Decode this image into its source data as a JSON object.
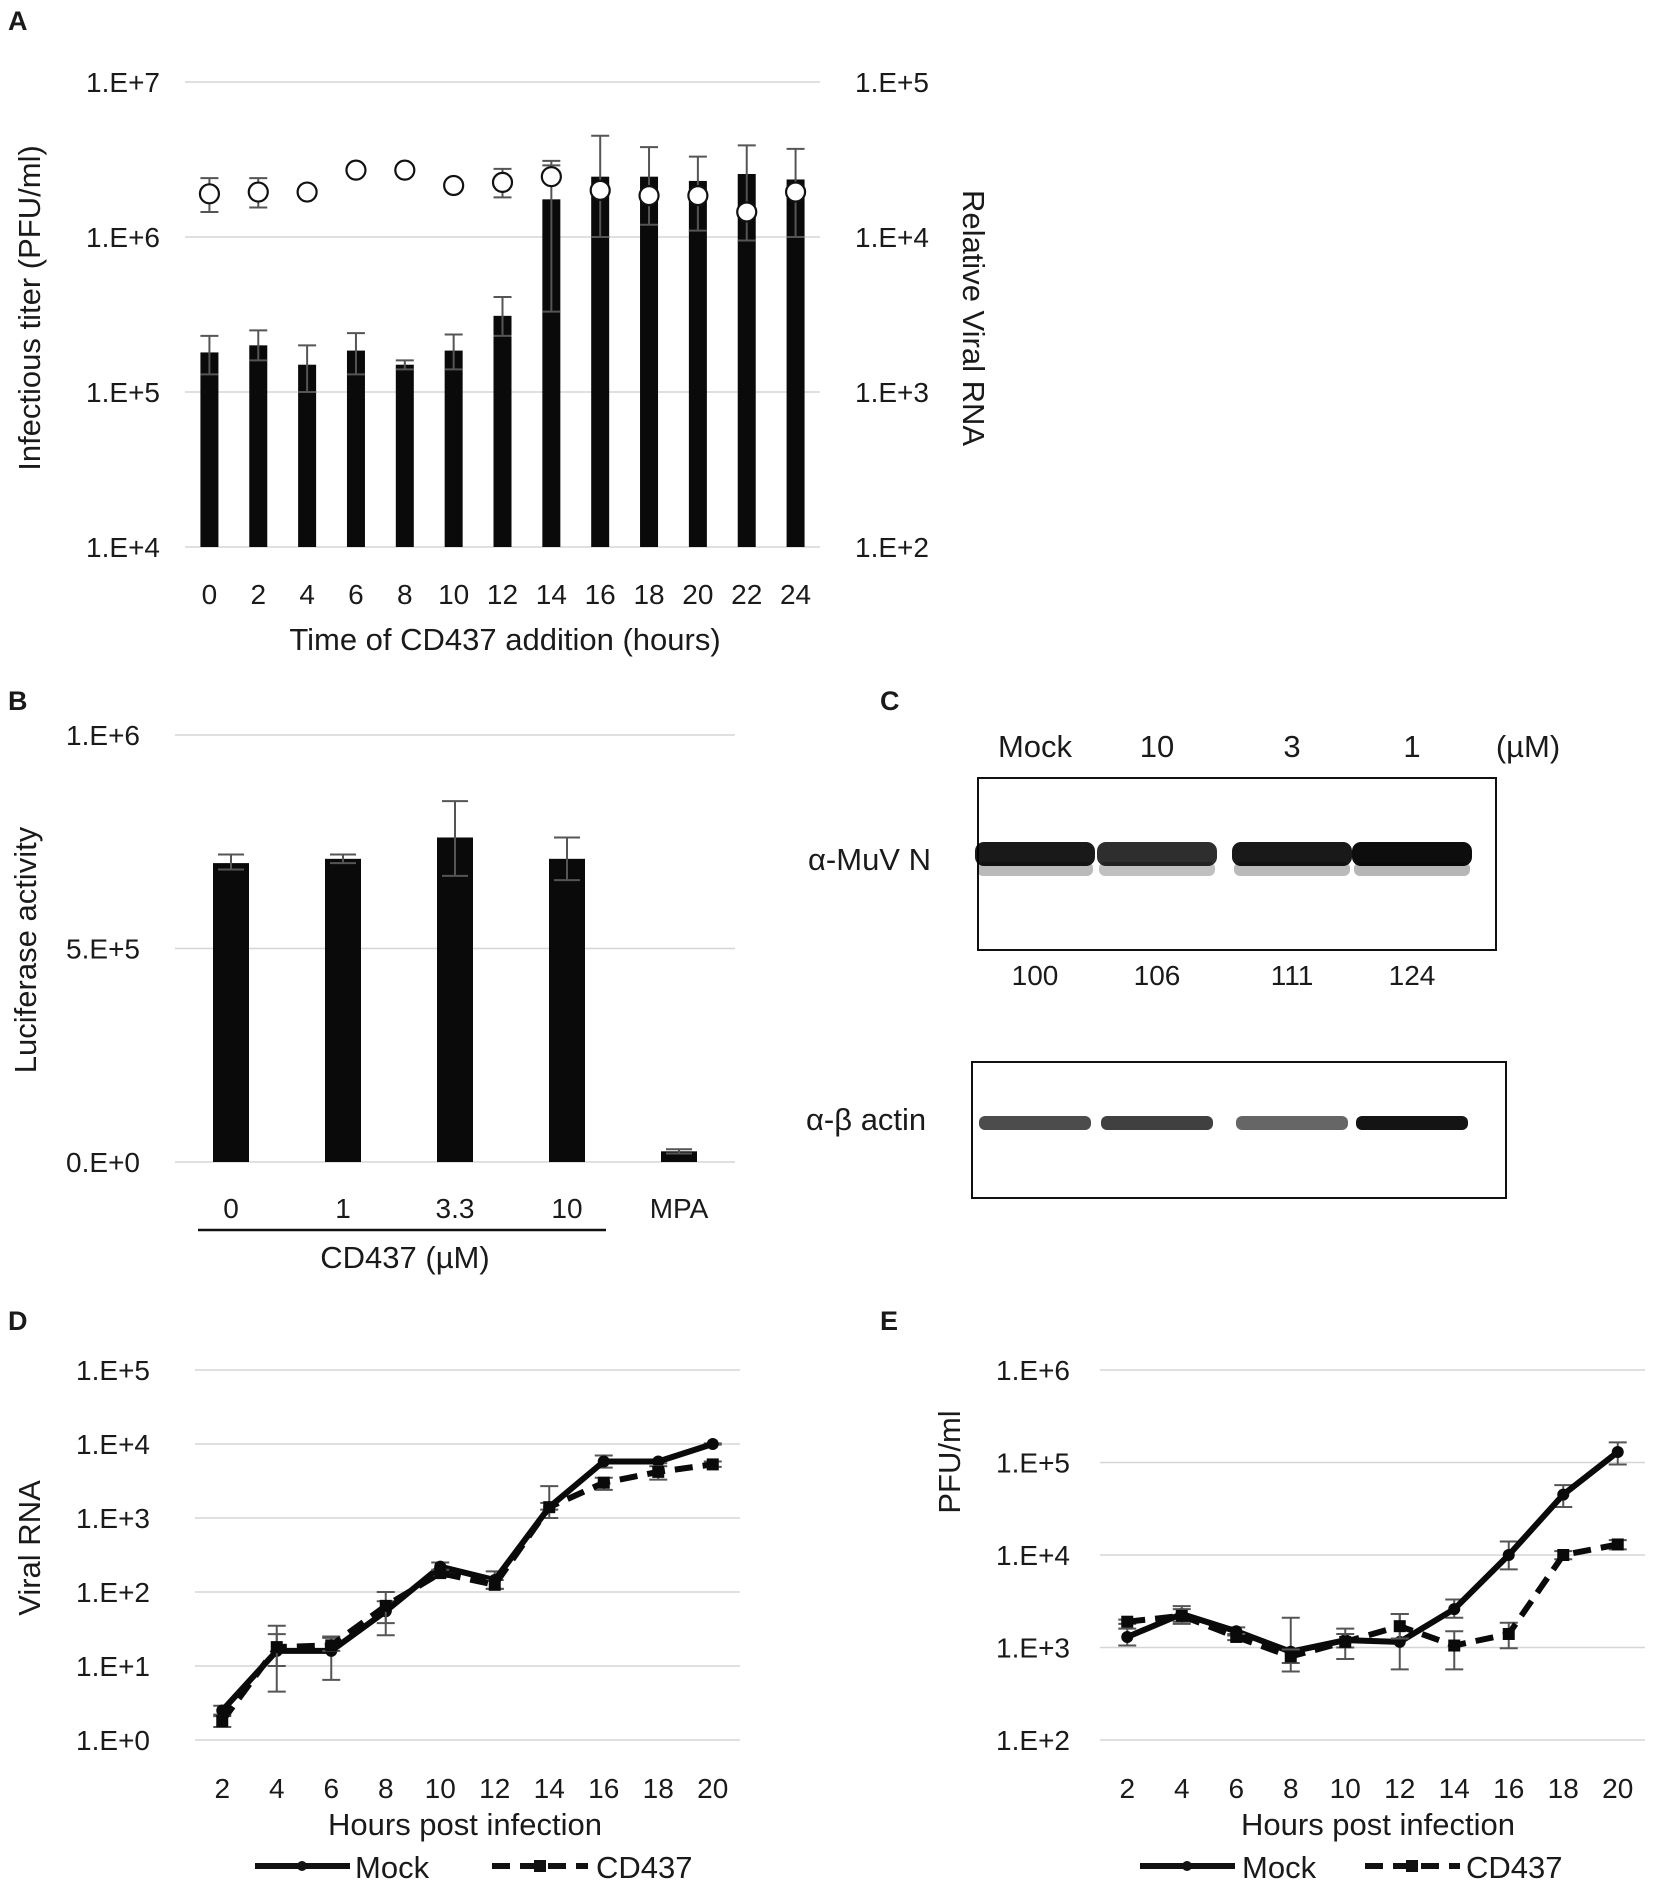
{
  "panels": [
    {
      "letter": "A",
      "chart_data": {
        "type": "bar",
        "yscale": "log",
        "categories": [
          "0",
          "2",
          "4",
          "6",
          "8",
          "10",
          "12",
          "14",
          "16",
          "18",
          "20",
          "22",
          "24"
        ],
        "xlabel": "Time of CD437 addition (hours)",
        "ylabel": "Infectious titer (PFU/ml)",
        "ylim": [
          10000,
          10000000
        ],
        "yticks": [
          "1.E+4",
          "1.E+5",
          "1.E+6",
          "1.E+7"
        ],
        "y2label": "Relative Viral RNA",
        "y2lim": [
          100,
          100000
        ],
        "y2ticks": [
          "1.E+2",
          "1.E+3",
          "1.E+4",
          "1.E+5"
        ],
        "series": [
          {
            "name": "Infectious titer",
            "kind": "bar",
            "axis": "left",
            "values": [
              180000,
              200000,
              150000,
              185000,
              150000,
              185000,
              310000,
              1750000,
              2450000,
              2450000,
              2300000,
              2550000,
              2350000
            ],
            "err_low": [
              130000,
              160000,
              100000,
              130000,
              140000,
              140000,
              230000,
              330000,
              1000000,
              1200000,
              1100000,
              950000,
              1000000
            ],
            "err_high": [
              230000,
              250000,
              200000,
              240000,
              160000,
              235000,
              410000,
              3100000,
              4500000,
              3800000,
              3300000,
              3900000,
              3700000
            ]
          },
          {
            "name": "Relative Viral RNA",
            "kind": "scatter",
            "axis": "right",
            "values": [
              19000,
              19500,
              19500,
              27000,
              27000,
              21500,
              22500,
              24500,
              20000,
              18500,
              18500,
              14500,
              19500
            ],
            "err_low": [
              14500,
              15500,
              19500,
              27000,
              25500,
              20500,
              18000,
              23000,
              20000,
              18500,
              18500,
              14500,
              19500
            ],
            "err_high": [
              24000,
              24000,
              19500,
              27000,
              28500,
              22500,
              27500,
              29000,
              20000,
              18500,
              18500,
              14500,
              19500
            ]
          }
        ]
      }
    },
    {
      "letter": "B",
      "chart_data": {
        "type": "bar",
        "categories": [
          "0",
          "1",
          "3.3",
          "10",
          "MPA"
        ],
        "group_label": "CD437 (µM)",
        "ylabel": "Luciferase activity",
        "ylim": [
          0,
          1000000
        ],
        "yticks": [
          "0.E+0",
          "5.E+5",
          "1.E+6"
        ],
        "values": [
          700000,
          710000,
          760000,
          710000,
          25000
        ],
        "err_low": [
          685000,
          700000,
          670000,
          660000,
          20000
        ],
        "err_high": [
          720000,
          720000,
          845000,
          760000,
          30000
        ]
      }
    },
    {
      "letter": "C",
      "blot": {
        "lane_labels": [
          "Mock",
          "10",
          "3",
          "1"
        ],
        "unit": "(µM)",
        "rows": [
          {
            "label": "α-MuV N",
            "intensities": [
              0.9,
              0.82,
              0.9,
              0.95
            ]
          },
          {
            "label": "α-β actin",
            "intensities": [
              0.7,
              0.75,
              0.6,
              0.92
            ]
          }
        ],
        "quantification": [
          "100",
          "106",
          "111",
          "124"
        ]
      }
    },
    {
      "letter": "D",
      "chart_data": {
        "type": "line",
        "yscale": "log",
        "x": [
          2,
          4,
          6,
          8,
          10,
          12,
          14,
          16,
          18,
          20
        ],
        "xlabel": "Hours post infection",
        "ylabel": "Viral RNA",
        "ylim": [
          1,
          100000
        ],
        "yticks": [
          "1.E+0",
          "1.E+1",
          "1.E+2",
          "1.E+3",
          "1.E+4",
          "1.E+5"
        ],
        "series": [
          {
            "name": "Mock",
            "style": "solid",
            "values": [
              2.5,
              16,
              16,
              55,
              220,
              145,
              1400,
              5800,
              5800,
              10000
            ],
            "err_low": [
              2.2,
              10,
              6.5,
              38,
              190,
              110,
              1000,
              4800,
              5500,
              9800
            ],
            "err_high": [
              2.9,
              35,
              25,
              75,
              250,
              190,
              2700,
              7000,
              6100,
              10200
            ]
          },
          {
            "name": "CD437",
            "style": "dashed",
            "values": [
              1.8,
              18,
              19,
              65,
              180,
              125,
              1400,
              3000,
              4200,
              5300
            ],
            "err_low": [
              1.5,
              4.5,
              16,
              26,
              160,
              110,
              1300,
              2400,
              3300,
              4900
            ],
            "err_high": [
              2.1,
              27,
              24,
              100,
              200,
              145,
              1600,
              3500,
              5000,
              5800
            ]
          }
        ]
      }
    },
    {
      "letter": "E",
      "chart_data": {
        "type": "line",
        "yscale": "log",
        "x": [
          2,
          4,
          6,
          8,
          10,
          12,
          14,
          16,
          18,
          20
        ],
        "xlabel": "Hours post infection",
        "ylabel": "PFU/ml",
        "ylim": [
          100,
          1000000
        ],
        "yticks": [
          "1.E+2",
          "1.E+3",
          "1.E+4",
          "1.E+5",
          "1.E+6"
        ],
        "series": [
          {
            "name": "Mock",
            "style": "solid",
            "values": [
              1300,
              2300,
              1500,
              900,
              1200,
              1150,
              2600,
              10000,
              45000,
              130000
            ],
            "err_low": [
              1050,
              1900,
              1350,
              550,
              750,
              580,
              2100,
              7000,
              33000,
              95000
            ],
            "err_high": [
              1600,
              2800,
              1650,
              2100,
              1600,
              2300,
              3300,
              14000,
              57000,
              165000
            ]
          },
          {
            "name": "CD437",
            "style": "dashed",
            "values": [
              1900,
              2200,
              1300,
              800,
              1150,
              1700,
              1050,
              1400,
              10000,
              13000
            ],
            "err_low": [
              1800,
              1800,
              1200,
              680,
              1000,
              1250,
              580,
              980,
              9000,
              11500
            ],
            "err_high": [
              2000,
              2600,
              1400,
              950,
              1400,
              2300,
              1500,
              1850,
              11000,
              14500
            ]
          }
        ]
      }
    }
  ],
  "legend": {
    "mock_label": "Mock",
    "cd437_label": "CD437"
  }
}
